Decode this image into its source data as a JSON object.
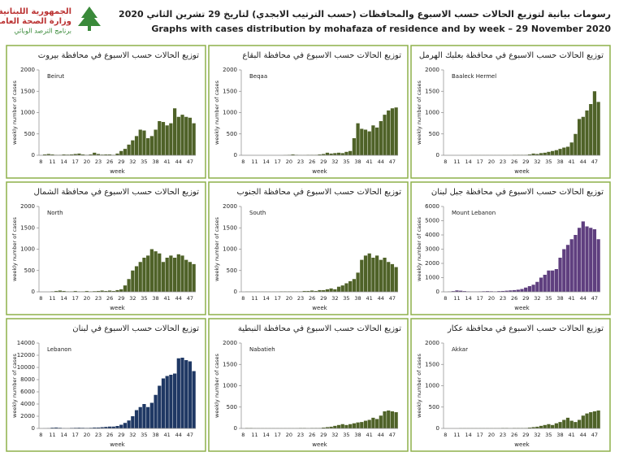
{
  "header": {
    "title_ar": "رسومات بيانية لتوزيع الحالات حسب الاسبوع  والمحافظات (حسب الترتيب الابجدي) لتاريخ 29 تشرين الثاني 2020",
    "title_en": "Graphs with cases distribution by mohafaza of residence and by week – 29 November 2020",
    "logo_line1": "الجمهورية اللبنانية",
    "logo_line2": "وزارة الصحة العامة",
    "logo_line3": "برنامج الترصد الوبائي"
  },
  "chart_data": [
    {
      "type": "bar",
      "title": "توزيع الحالات حسب الاسبوع في محافظة بيروت",
      "subtitle": "Beirut",
      "xlabel": "week",
      "ylabel": "weekly number of cases",
      "color": "#4f6228",
      "categories": [
        8,
        null,
        null,
        11,
        null,
        null,
        14,
        null,
        null,
        17,
        null,
        null,
        20,
        null,
        null,
        23,
        null,
        null,
        26,
        null,
        null,
        29,
        null,
        null,
        32,
        null,
        null,
        35,
        null,
        null,
        38,
        null,
        null,
        41,
        null,
        null,
        44,
        null,
        null,
        47,
        null
      ],
      "values": [
        0,
        20,
        30,
        20,
        10,
        10,
        20,
        15,
        20,
        30,
        40,
        20,
        10,
        20,
        60,
        30,
        15,
        20,
        20,
        10,
        40,
        100,
        150,
        250,
        350,
        450,
        600,
        580,
        400,
        450,
        600,
        800,
        780,
        700,
        750,
        1100,
        900,
        950,
        900,
        880,
        750
      ],
      "ylim": [
        0,
        2000
      ],
      "yticks": [
        0,
        500,
        1000,
        1500,
        2000
      ]
    },
    {
      "type": "bar",
      "title": "توزيع الحالات حسب الاسبوع في محافظة البقاع",
      "subtitle": "Beqaa",
      "xlabel": "week",
      "ylabel": "weekly number of cases",
      "color": "#4f6228",
      "categories": [
        8,
        null,
        null,
        11,
        null,
        null,
        14,
        null,
        null,
        17,
        null,
        null,
        20,
        null,
        null,
        23,
        null,
        null,
        26,
        null,
        null,
        29,
        null,
        null,
        32,
        null,
        null,
        35,
        null,
        null,
        38,
        null,
        null,
        41,
        null,
        null,
        44,
        null,
        null,
        47,
        null
      ],
      "values": [
        0,
        0,
        0,
        0,
        0,
        0,
        0,
        0,
        0,
        0,
        0,
        5,
        10,
        20,
        10,
        5,
        5,
        10,
        10,
        10,
        20,
        30,
        60,
        40,
        50,
        60,
        50,
        80,
        100,
        400,
        750,
        620,
        600,
        560,
        700,
        650,
        800,
        950,
        1050,
        1100,
        1120
      ],
      "ylim": [
        0,
        2000
      ],
      "yticks": [
        0,
        500,
        1000,
        1500,
        2000
      ]
    },
    {
      "type": "bar",
      "title": "توزيع الحالات حسب الاسبوع في محافظة بعلبك الهرمل",
      "subtitle": "Baaleck Hermel",
      "xlabel": "week",
      "ylabel": "weekly number of cases",
      "color": "#4f6228",
      "categories": [
        8,
        null,
        null,
        11,
        null,
        null,
        14,
        null,
        null,
        17,
        null,
        null,
        20,
        null,
        null,
        23,
        null,
        null,
        26,
        null,
        null,
        29,
        null,
        null,
        32,
        null,
        null,
        35,
        null,
        null,
        38,
        null,
        null,
        41,
        null,
        null,
        44,
        null,
        null,
        47,
        null
      ],
      "values": [
        0,
        0,
        0,
        0,
        0,
        0,
        0,
        5,
        5,
        5,
        5,
        5,
        5,
        5,
        5,
        5,
        5,
        5,
        10,
        10,
        10,
        10,
        20,
        40,
        30,
        50,
        60,
        80,
        100,
        120,
        150,
        180,
        200,
        300,
        500,
        850,
        900,
        1050,
        1200,
        1500,
        1250
      ],
      "ylim": [
        0,
        2000
      ],
      "yticks": [
        0,
        500,
        1000,
        1500,
        2000
      ]
    },
    {
      "type": "bar",
      "title": "توزيع الحالات حسب الاسبوع في محافظة الشمال",
      "subtitle": "North",
      "xlabel": "week",
      "ylabel": "weekly number of cases",
      "color": "#4f6228",
      "categories": [
        8,
        null,
        null,
        11,
        null,
        null,
        14,
        null,
        null,
        17,
        null,
        null,
        20,
        null,
        null,
        23,
        null,
        null,
        26,
        null,
        null,
        29,
        null,
        null,
        32,
        null,
        null,
        35,
        null,
        null,
        38,
        null,
        null,
        41,
        null,
        null,
        44,
        null,
        null,
        47,
        null
      ],
      "values": [
        0,
        0,
        0,
        10,
        20,
        30,
        20,
        10,
        10,
        20,
        10,
        10,
        20,
        10,
        15,
        20,
        30,
        20,
        30,
        20,
        40,
        60,
        150,
        300,
        500,
        600,
        700,
        800,
        850,
        1000,
        950,
        900,
        700,
        800,
        850,
        800,
        880,
        850,
        750,
        700,
        650
      ],
      "ylim": [
        0,
        2000
      ],
      "yticks": [
        0,
        500,
        1000,
        1500,
        2000
      ]
    },
    {
      "type": "bar",
      "title": "توزيع الحالات حسب الاسبوع في محافظة الجنوب",
      "subtitle": "South",
      "xlabel": "week",
      "ylabel": "weekly number of cases",
      "color": "#4f6228",
      "categories": [
        8,
        null,
        null,
        11,
        null,
        null,
        14,
        null,
        null,
        17,
        null,
        null,
        20,
        null,
        null,
        23,
        null,
        null,
        26,
        null,
        null,
        29,
        null,
        null,
        32,
        null,
        null,
        35,
        null,
        null,
        38,
        null,
        null,
        41,
        null,
        null,
        44,
        null,
        null,
        47,
        null
      ],
      "values": [
        0,
        5,
        5,
        5,
        5,
        5,
        5,
        5,
        5,
        5,
        10,
        10,
        10,
        10,
        10,
        10,
        20,
        20,
        30,
        20,
        40,
        40,
        60,
        80,
        60,
        120,
        150,
        200,
        250,
        300,
        450,
        750,
        850,
        900,
        800,
        850,
        750,
        800,
        700,
        650,
        580
      ],
      "ylim": [
        0,
        2000
      ],
      "yticks": [
        0,
        500,
        1000,
        1500,
        2000
      ]
    },
    {
      "type": "bar",
      "title": "توزيع الحالات حسب الاسبوع في محافظة جبل لبنان",
      "subtitle": "Mount Lebanon",
      "xlabel": "week",
      "ylabel": "weekly number of cases",
      "color": "#5f3f7f",
      "categories": [
        8,
        null,
        null,
        11,
        null,
        null,
        14,
        null,
        null,
        17,
        null,
        null,
        20,
        null,
        null,
        23,
        null,
        null,
        26,
        null,
        null,
        29,
        null,
        null,
        32,
        null,
        null,
        35,
        null,
        null,
        38,
        null,
        null,
        41,
        null,
        null,
        44,
        null,
        null,
        47,
        null
      ],
      "values": [
        0,
        20,
        50,
        100,
        80,
        50,
        30,
        20,
        20,
        30,
        40,
        50,
        40,
        30,
        50,
        60,
        80,
        100,
        120,
        150,
        200,
        300,
        400,
        500,
        700,
        1000,
        1200,
        1500,
        1500,
        1600,
        2400,
        3000,
        3300,
        3700,
        4000,
        4500,
        4950,
        4600,
        4500,
        4400,
        3700
      ],
      "ylim": [
        0,
        6000
      ],
      "yticks": [
        0,
        1000,
        2000,
        3000,
        4000,
        5000,
        6000
      ]
    },
    {
      "type": "bar",
      "title": "توزيع الحالات حسب الاسبوع في لبنان",
      "subtitle": "Lebanon",
      "xlabel": "week",
      "ylabel": "weekly number of cases",
      "color": "#1f3864",
      "categories": [
        8,
        null,
        null,
        11,
        null,
        null,
        14,
        null,
        null,
        17,
        null,
        null,
        20,
        null,
        null,
        23,
        null,
        null,
        26,
        null,
        null,
        29,
        null,
        null,
        32,
        null,
        null,
        35,
        null,
        null,
        38,
        null,
        null,
        41,
        null,
        null,
        44,
        null,
        null,
        47,
        null
      ],
      "values": [
        0,
        20,
        50,
        120,
        150,
        100,
        50,
        40,
        80,
        100,
        120,
        100,
        80,
        100,
        150,
        150,
        200,
        250,
        300,
        300,
        400,
        600,
        900,
        1300,
        2000,
        3000,
        3500,
        4000,
        3500,
        4200,
        5500,
        7000,
        8200,
        8600,
        8800,
        9000,
        11500,
        11600,
        11200,
        11000,
        9400
      ],
      "ylim": [
        0,
        14000
      ],
      "yticks": [
        0,
        2000,
        4000,
        6000,
        8000,
        10000,
        12000,
        14000
      ]
    },
    {
      "type": "bar",
      "title": "توزيع الحالات حسب الاسبوع في محافظة النبطية",
      "subtitle": "Nabatieh",
      "xlabel": "week",
      "ylabel": "weekly number of cases",
      "color": "#4f6228",
      "categories": [
        8,
        null,
        null,
        11,
        null,
        null,
        14,
        null,
        null,
        17,
        null,
        null,
        20,
        null,
        null,
        23,
        null,
        null,
        26,
        null,
        null,
        29,
        null,
        null,
        32,
        null,
        null,
        35,
        null,
        null,
        38,
        null,
        null,
        41,
        null,
        null,
        44,
        null,
        null,
        47,
        null
      ],
      "values": [
        0,
        10,
        10,
        5,
        5,
        5,
        5,
        5,
        5,
        5,
        5,
        5,
        5,
        5,
        5,
        10,
        10,
        5,
        10,
        10,
        10,
        20,
        30,
        40,
        60,
        80,
        100,
        80,
        100,
        120,
        140,
        150,
        180,
        200,
        250,
        220,
        300,
        400,
        420,
        400,
        380
      ],
      "ylim": [
        0,
        2000
      ],
      "yticks": [
        0,
        500,
        1000,
        1500,
        2000
      ]
    },
    {
      "type": "bar",
      "title": "توزيع الحالات حسب الاسبوع في محافظة عكار",
      "subtitle": "Akkar",
      "xlabel": "week",
      "ylabel": "weekly number of cases",
      "color": "#4f6228",
      "categories": [
        8,
        null,
        null,
        11,
        null,
        null,
        14,
        null,
        null,
        17,
        null,
        null,
        20,
        null,
        null,
        23,
        null,
        null,
        26,
        null,
        null,
        29,
        null,
        null,
        32,
        null,
        null,
        35,
        null,
        null,
        38,
        null,
        null,
        41,
        null,
        null,
        44,
        null,
        null,
        47,
        null
      ],
      "values": [
        0,
        0,
        0,
        0,
        5,
        5,
        5,
        5,
        5,
        5,
        5,
        5,
        5,
        5,
        5,
        10,
        10,
        5,
        10,
        10,
        10,
        10,
        20,
        30,
        40,
        60,
        80,
        100,
        80,
        120,
        150,
        200,
        250,
        180,
        150,
        200,
        300,
        350,
        380,
        400,
        420
      ],
      "ylim": [
        0,
        2000
      ],
      "yticks": [
        0,
        500,
        1000,
        1500,
        2000
      ]
    }
  ]
}
